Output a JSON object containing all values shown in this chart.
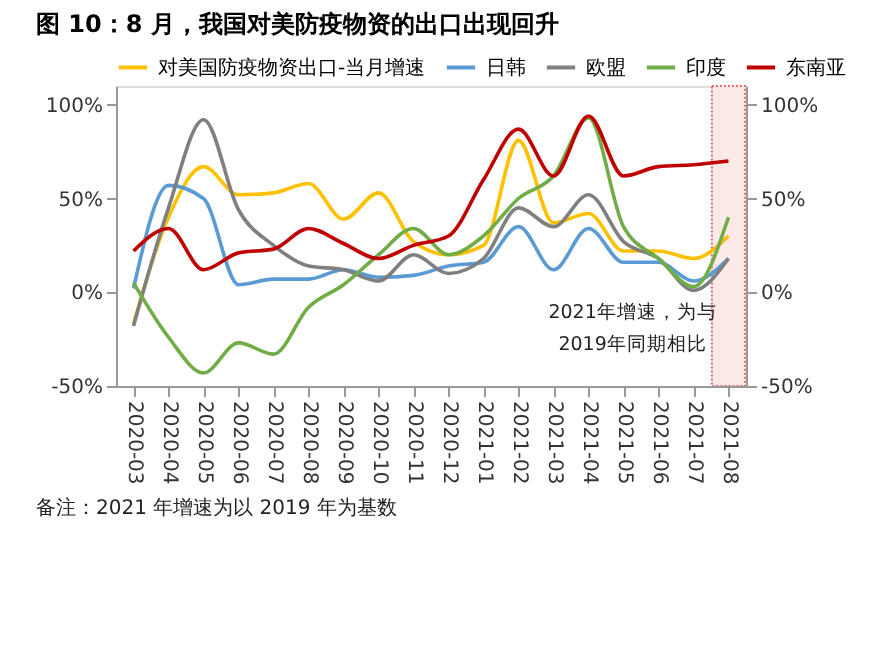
{
  "chart_data": {
    "type": "line",
    "title": "图 10：8 月，我国对美防疫物资的出口出现回升",
    "categories": [
      "2020-03",
      "2020-04",
      "2020-05",
      "2020-06",
      "2020-07",
      "2020-08",
      "2020-09",
      "2020-10",
      "2020-11",
      "2020-12",
      "2021-01",
      "2021-02",
      "2021-03",
      "2021-04",
      "2021-05",
      "2021-06",
      "2021-07",
      "2021-08"
    ],
    "series": [
      {
        "name": "对美国防疫物资出口-当月增速",
        "color": "#ffc000",
        "values": [
          -17,
          40,
          67,
          52,
          53,
          58,
          39,
          53,
          27,
          20,
          25,
          81,
          37,
          42,
          22,
          22,
          18,
          30
        ]
      },
      {
        "name": "日韩",
        "color": "#5b9bd5",
        "values": [
          2,
          57,
          50,
          4,
          7,
          7,
          12,
          8,
          9,
          14,
          16,
          35,
          12,
          34,
          16,
          16,
          6,
          18
        ]
      },
      {
        "name": "欧盟",
        "color": "#7f7f7f",
        "values": [
          -18,
          45,
          92,
          44,
          25,
          14,
          12,
          6,
          20,
          10,
          18,
          45,
          35,
          52,
          27,
          18,
          1,
          18
        ]
      },
      {
        "name": "印度",
        "color": "#70ad47",
        "values": [
          5,
          -24,
          -43,
          -27,
          -33,
          -8,
          4,
          20,
          34,
          20,
          30,
          50,
          62,
          93,
          35,
          18,
          3,
          40
        ]
      },
      {
        "name": "东南亚",
        "color": "#c00000",
        "values": [
          22,
          34,
          12,
          21,
          23,
          34,
          26,
          18,
          25,
          30,
          60,
          87,
          62,
          94,
          62,
          67,
          68,
          70
        ]
      }
    ],
    "ylim": [
      -50,
      110
    ],
    "yticks": [
      {
        "value": -50,
        "label": "-50%"
      },
      {
        "value": 0,
        "label": "0%"
      },
      {
        "value": 50,
        "label": "50%"
      },
      {
        "value": 100,
        "label": "100%"
      }
    ],
    "y2lim": [
      -50,
      110
    ],
    "y2ticks": [
      {
        "value": -50,
        "label": "-50%"
      },
      {
        "value": 0,
        "label": "0%"
      },
      {
        "value": 50,
        "label": "50%"
      },
      {
        "value": 100,
        "label": "100%"
      }
    ],
    "bands": [
      {
        "axis": "x",
        "from": "2021-08",
        "to": "2021-08",
        "color": "#fde9e7"
      }
    ],
    "annotations": [
      "2021年增速，为与\n2019年同期相比",
      "备注：2021 年增速为以 2019 年为基数"
    ],
    "grid": false,
    "legend": "top",
    "marker": "none",
    "line_style": "solid"
  }
}
